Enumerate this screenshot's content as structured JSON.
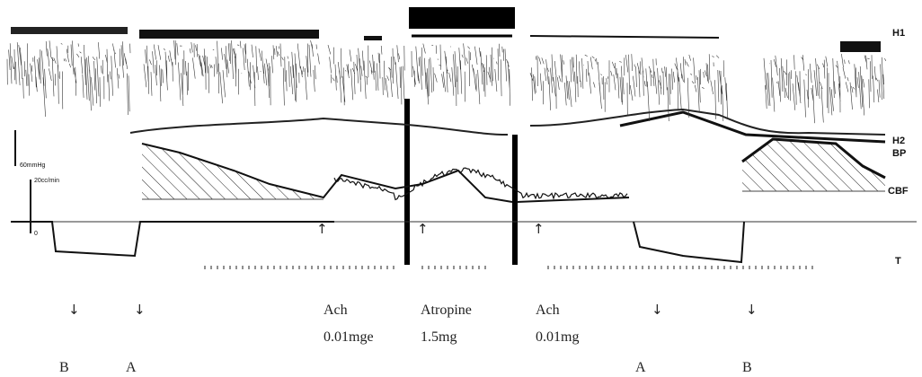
{
  "trace_labels": [
    "H1",
    "H2",
    "BP",
    "CBF",
    "T"
  ],
  "scale_labels": {
    "pressure": "60mmHg",
    "flow": "20cc/min",
    "zero": "0"
  },
  "markers": [
    {
      "arrow": "↓",
      "label": "B"
    },
    {
      "arrow": "↓",
      "label": "A"
    },
    {
      "arrow": "↓",
      "label": "A"
    },
    {
      "arrow": "↓",
      "label": "B"
    }
  ],
  "injections": [
    {
      "drug": "Ach",
      "dose": "0.01mge"
    },
    {
      "drug": "Atropine",
      "dose": "1.5mg"
    },
    {
      "drug": "Ach",
      "dose": "0.01mg"
    }
  ]
}
